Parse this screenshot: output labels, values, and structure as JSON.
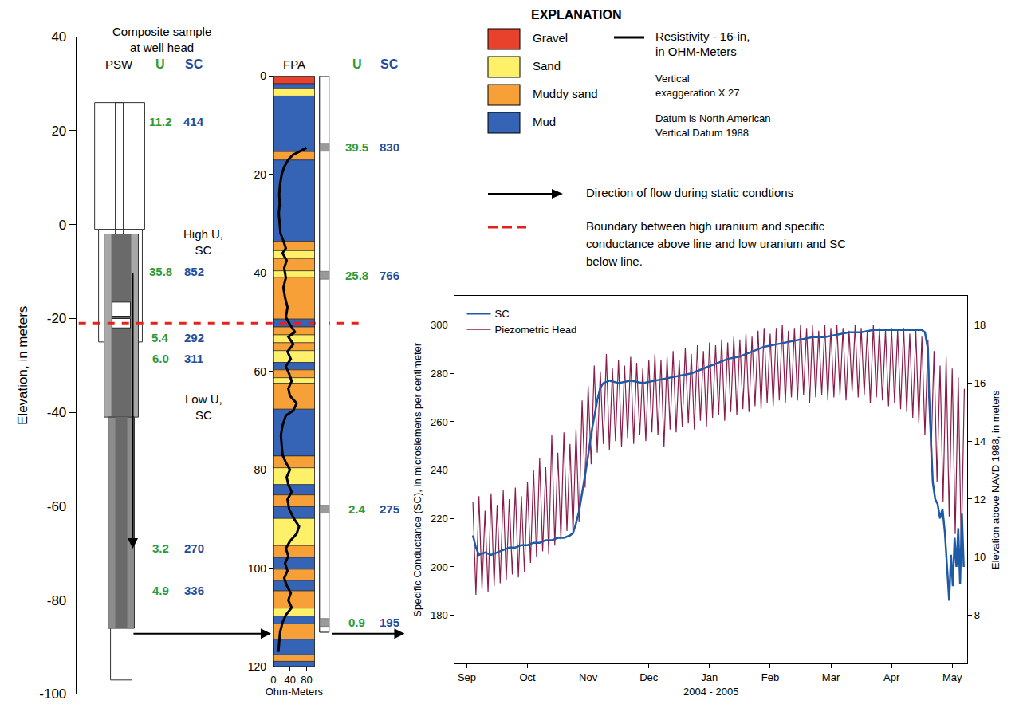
{
  "diagram": {
    "elevation_axis": {
      "title": "Elevation, in meters",
      "ylim": [
        -100,
        40
      ],
      "yticks": [
        -100,
        -80,
        -60,
        -40,
        -20,
        0,
        20,
        40
      ]
    },
    "boundary_elevation": -21,
    "psw": {
      "label": "PSW",
      "note": [
        "Composite sample",
        "at well head"
      ],
      "columns": [
        "U",
        "SC"
      ],
      "casing": [
        [
          26,
          -1
        ],
        [
          -1,
          -25
        ],
        [
          -2,
          -41
        ],
        [
          -41,
          -86
        ],
        [
          -86,
          -97
        ]
      ],
      "pump": [
        [
          -16.5,
          -19.5
        ],
        [
          -20,
          -22
        ]
      ],
      "samples": [
        {
          "elevation": 22,
          "U": "11.2",
          "SC": "414"
        },
        {
          "elevation": -10,
          "U": "35.8",
          "SC": "852"
        },
        {
          "elevation": -24,
          "U": "5.4",
          "SC": "292"
        },
        {
          "elevation": -28.5,
          "U": "6.0",
          "SC": "311"
        },
        {
          "elevation": -69,
          "U": "3.2",
          "SC": "270"
        },
        {
          "elevation": -78,
          "U": "4.9",
          "SC": "336"
        }
      ],
      "zones": [
        {
          "lines": [
            "High U,",
            "SC"
          ],
          "elevation": -3.7
        },
        {
          "lines": [
            "Low U,",
            "SC"
          ],
          "elevation": -38.8
        }
      ]
    },
    "fpa": {
      "label": "FPA",
      "columns": [
        "U",
        "SC"
      ],
      "depth_axis": {
        "ylim": [
          120,
          0
        ],
        "yticks": [
          0,
          20,
          40,
          60,
          80,
          100,
          120
        ]
      },
      "resistivity_axis": {
        "title": "Ohm-Meters",
        "xlim": [
          0,
          100
        ],
        "xticks": [
          0,
          40,
          80
        ]
      },
      "well_bottom_depth": 113,
      "samples": [
        {
          "depth": 14.5,
          "U": "39.5",
          "SC": "830"
        },
        {
          "depth": 40.5,
          "U": "25.8",
          "SC": "766"
        },
        {
          "depth": 88,
          "U": "2.4",
          "SC": "275"
        },
        {
          "depth": 111,
          "U": "0.9",
          "SC": "195"
        }
      ],
      "lithology": [
        {
          "top": 0,
          "bottom": 1.6,
          "unit": "Gravel"
        },
        {
          "top": 1.6,
          "bottom": 2.5,
          "unit": "Mud"
        },
        {
          "top": 2.5,
          "bottom": 4.1,
          "unit": "Sand"
        },
        {
          "top": 4.1,
          "bottom": 15.4,
          "unit": "Mud"
        },
        {
          "top": 15.4,
          "bottom": 17.1,
          "unit": "Muddy sand"
        },
        {
          "top": 17.1,
          "bottom": 33.6,
          "unit": "Mud"
        },
        {
          "top": 33.6,
          "bottom": 35.5,
          "unit": "Muddy sand"
        },
        {
          "top": 35.5,
          "bottom": 37.1,
          "unit": "Sand"
        },
        {
          "top": 37.1,
          "bottom": 39.6,
          "unit": "Muddy sand"
        },
        {
          "top": 39.6,
          "bottom": 40.9,
          "unit": "Sand"
        },
        {
          "top": 40.9,
          "bottom": 49.4,
          "unit": "Muddy sand"
        },
        {
          "top": 49.4,
          "bottom": 51,
          "unit": "Mud"
        },
        {
          "top": 51,
          "bottom": 52.6,
          "unit": "Muddy sand"
        },
        {
          "top": 52.6,
          "bottom": 54.2,
          "unit": "Sand"
        },
        {
          "top": 54.2,
          "bottom": 55.8,
          "unit": "Muddy sand"
        },
        {
          "top": 55.8,
          "bottom": 58.2,
          "unit": "Sand"
        },
        {
          "top": 58.2,
          "bottom": 59.7,
          "unit": "Mud"
        },
        {
          "top": 59.7,
          "bottom": 61.3,
          "unit": "Muddy sand"
        },
        {
          "top": 61.3,
          "bottom": 62.4,
          "unit": "Sand"
        },
        {
          "top": 62.4,
          "bottom": 67.7,
          "unit": "Muddy sand"
        },
        {
          "top": 67.7,
          "bottom": 77.2,
          "unit": "Mud"
        },
        {
          "top": 77.2,
          "bottom": 79.6,
          "unit": "Muddy sand"
        },
        {
          "top": 79.6,
          "bottom": 83,
          "unit": "Sand"
        },
        {
          "top": 83,
          "bottom": 85.1,
          "unit": "Mud"
        },
        {
          "top": 85.1,
          "bottom": 87.5,
          "unit": "Muddy sand"
        },
        {
          "top": 87.5,
          "bottom": 89.9,
          "unit": "Mud"
        },
        {
          "top": 89.9,
          "bottom": 95.4,
          "unit": "Sand"
        },
        {
          "top": 95.4,
          "bottom": 97.8,
          "unit": "Muddy sand"
        },
        {
          "top": 97.8,
          "bottom": 100.2,
          "unit": "Mud"
        },
        {
          "top": 100.2,
          "bottom": 102.5,
          "unit": "Muddy sand"
        },
        {
          "top": 102.5,
          "bottom": 104.6,
          "unit": "Mud"
        },
        {
          "top": 104.6,
          "bottom": 108.1,
          "unit": "Muddy sand"
        },
        {
          "top": 108.1,
          "bottom": 109.7,
          "unit": "Sand"
        },
        {
          "top": 109.7,
          "bottom": 111.3,
          "unit": "Mud"
        },
        {
          "top": 111.3,
          "bottom": 114.4,
          "unit": "Muddy sand"
        },
        {
          "top": 114.4,
          "bottom": 117.6,
          "unit": "Mud"
        },
        {
          "top": 117.6,
          "bottom": 118.9,
          "unit": "Muddy sand"
        },
        {
          "top": 118.9,
          "bottom": 120,
          "unit": "Mud"
        }
      ],
      "resistivity": {
        "depth": [
          14.6,
          15,
          15.5,
          16,
          17,
          18.5,
          20,
          22,
          24,
          26,
          28,
          30,
          32,
          33.5,
          35,
          36,
          37.5,
          39,
          41,
          43,
          45,
          47,
          49,
          50.5,
          52,
          53,
          54.5,
          56,
          57.5,
          59,
          60.5,
          62,
          63.5,
          65,
          66.5,
          68,
          69,
          71,
          73,
          75,
          77,
          78.5,
          80,
          81.5,
          83,
          84.5,
          86,
          88,
          90,
          91.5,
          93,
          94.5,
          96,
          97.5,
          99,
          100.5,
          102,
          103.5,
          105,
          106.5,
          108,
          109.5,
          111,
          113,
          115,
          117
        ],
        "ohm": [
          80,
          72,
          60,
          48,
          36,
          26,
          20,
          16,
          14,
          15,
          13,
          15,
          17,
          24,
          30,
          22,
          32,
          26,
          30,
          24,
          28,
          34,
          30,
          40,
          52,
          36,
          48,
          34,
          42,
          30,
          38,
          44,
          36,
          40,
          56,
          48,
          30,
          22,
          18,
          20,
          22,
          30,
          40,
          32,
          36,
          44,
          34,
          38,
          50,
          62,
          56,
          40,
          30,
          36,
          28,
          34,
          26,
          32,
          42,
          36,
          44,
          30,
          22,
          16,
          14,
          12
        ]
      }
    },
    "explanation": {
      "title": "EXPLANATION",
      "units": [
        {
          "name": "Gravel",
          "color": "#e8412c"
        },
        {
          "name": "Sand",
          "color": "#fff06a"
        },
        {
          "name": "Muddy sand",
          "color": "#f6a037"
        },
        {
          "name": "Mud",
          "color": "#3563b5"
        }
      ],
      "resistivity": [
        "Resistivity - 16-in,",
        "in OHM-Meters"
      ],
      "notes": [
        [
          "Vertical",
          "exaggeration X 27"
        ],
        [
          "Datum is North American",
          "Vertical Datum 1988"
        ]
      ],
      "flow": "Direction of flow during static condtions",
      "boundary": [
        "Boundary between high uranium and specific",
        "conductance above line and low uranium and SC",
        "below line."
      ]
    }
  },
  "chart_data": {
    "type": "line",
    "xlabel": "2004 - 2005",
    "ylabel": "Specific Conductance (SC), in microsiemens per centimeter",
    "y2label": "Elevation above NAVD 1988, in meters",
    "xlim": [
      -0.2,
      8.25
    ],
    "xticks": [
      {
        "value": 0,
        "label": "Sep"
      },
      {
        "value": 1,
        "label": "Oct"
      },
      {
        "value": 2,
        "label": "Nov"
      },
      {
        "value": 3,
        "label": "Dec"
      },
      {
        "value": 4,
        "label": "Jan"
      },
      {
        "value": 5,
        "label": "Feb"
      },
      {
        "value": 6,
        "label": "Mar"
      },
      {
        "value": 7,
        "label": "Apr"
      },
      {
        "value": 8,
        "label": "May"
      }
    ],
    "ylim": [
      160,
      312
    ],
    "yticks": [
      180,
      200,
      220,
      240,
      260,
      280,
      300
    ],
    "y2lim": [
      6.33,
      19
    ],
    "y2ticks": [
      8,
      10,
      12,
      14,
      16,
      18
    ],
    "grid": false,
    "legend": "top left",
    "series": [
      {
        "name": "SC",
        "color": "#1f5aa6",
        "x": [
          0.1,
          0.15,
          0.2,
          0.3,
          0.4,
          0.5,
          0.6,
          0.7,
          0.8,
          0.9,
          1,
          1.1,
          1.2,
          1.3,
          1.4,
          1.5,
          1.6,
          1.7,
          1.75,
          1.8,
          1.85,
          1.9,
          1.95,
          2,
          2.05,
          2.1,
          2.15,
          2.2,
          2.25,
          2.35,
          2.5,
          2.7,
          2.9,
          3.1,
          3.3,
          3.5,
          3.7,
          3.9,
          4.1,
          4.3,
          4.5,
          4.7,
          4.9,
          5.1,
          5.3,
          5.5,
          5.7,
          5.9,
          6.1,
          6.3,
          6.5,
          6.7,
          6.9,
          7.1,
          7.3,
          7.5,
          7.55,
          7.6,
          7.62,
          7.65,
          7.68,
          7.72,
          7.76,
          7.8,
          7.84,
          7.88,
          7.92,
          7.95,
          7.98,
          8.01,
          8.04,
          8.07,
          8.1,
          8.13,
          8.16,
          8.19
        ],
        "values": [
          213,
          208,
          205,
          206,
          205,
          206,
          207,
          208,
          208,
          209,
          209,
          210,
          210,
          211,
          211,
          212,
          212,
          213,
          214,
          218,
          223,
          230,
          238,
          246,
          255,
          262,
          269,
          274,
          276,
          277,
          276,
          277,
          276,
          277,
          278,
          279,
          280,
          282,
          284,
          286,
          287,
          289,
          291,
          292,
          293,
          294,
          295,
          295,
          296,
          297,
          297,
          298,
          298,
          298,
          298,
          298,
          297,
          290,
          270,
          250,
          235,
          228,
          226,
          220,
          224,
          214,
          198,
          186,
          205,
          192,
          212,
          200,
          216,
          193,
          222,
          200
        ]
      },
      {
        "name": "Piezometric Head",
        "color": "#8a1c4a",
        "axis": "y2",
        "x": [
          0.1,
          0.15,
          0.2,
          0.25,
          0.3,
          0.35,
          0.4,
          0.45,
          0.5,
          0.55,
          0.6,
          0.65,
          0.7,
          0.75,
          0.8,
          0.85,
          0.9,
          0.95,
          1,
          1.05,
          1.1,
          1.15,
          1.2,
          1.25,
          1.3,
          1.35,
          1.4,
          1.45,
          1.5,
          1.55,
          1.6,
          1.65,
          1.7,
          1.75,
          1.8,
          1.85,
          1.9,
          1.95,
          2,
          2.05,
          2.1,
          2.15,
          2.2,
          2.25,
          2.3,
          2.35,
          2.4,
          2.45,
          2.5,
          2.55,
          2.6,
          2.65,
          2.7,
          2.75,
          2.8,
          2.85,
          2.9,
          2.95,
          3,
          3.05,
          3.1,
          3.15,
          3.2,
          3.25,
          3.3,
          3.35,
          3.4,
          3.45,
          3.5,
          3.55,
          3.6,
          3.65,
          3.7,
          3.75,
          3.8,
          3.85,
          3.9,
          3.95,
          4,
          4.05,
          4.1,
          4.15,
          4.2,
          4.25,
          4.3,
          4.35,
          4.4,
          4.45,
          4.5,
          4.55,
          4.6,
          4.65,
          4.7,
          4.75,
          4.8,
          4.85,
          4.9,
          4.95,
          5,
          5.05,
          5.1,
          5.15,
          5.2,
          5.25,
          5.3,
          5.35,
          5.4,
          5.45,
          5.5,
          5.55,
          5.6,
          5.65,
          5.7,
          5.75,
          5.8,
          5.85,
          5.9,
          5.95,
          6,
          6.05,
          6.1,
          6.15,
          6.2,
          6.25,
          6.3,
          6.35,
          6.4,
          6.45,
          6.5,
          6.55,
          6.6,
          6.65,
          6.7,
          6.75,
          6.8,
          6.85,
          6.9,
          6.95,
          7,
          7.05,
          7.1,
          7.15,
          7.2,
          7.25,
          7.3,
          7.35,
          7.4,
          7.45,
          7.5,
          7.55,
          7.6,
          7.65,
          7.7,
          7.75,
          7.8,
          7.85,
          7.9,
          7.95,
          8,
          8.05,
          8.1,
          8.15,
          8.2
        ],
        "values": [
          11.9,
          8.7,
          12.1,
          8.9,
          11.6,
          8.8,
          12.2,
          9.0,
          11.8,
          9.1,
          12.3,
          9.2,
          12.0,
          9.4,
          12.4,
          9.3,
          12.1,
          9.5,
          12.6,
          9.8,
          13.0,
          10.0,
          13.4,
          10.2,
          13.1,
          10.1,
          14.2,
          10.4,
          13.6,
          10.6,
          14.3,
          10.9,
          13.9,
          10.8,
          14.4,
          11.2,
          15.4,
          12.4,
          15.9,
          13.2,
          16.6,
          13.6,
          16.4,
          13.9,
          17.0,
          13.7,
          16.5,
          14.0,
          16.8,
          13.8,
          16.6,
          14.1,
          16.9,
          13.9,
          16.7,
          14.2,
          16.5,
          14.0,
          16.8,
          14.3,
          17.0,
          14.2,
          16.8,
          13.8,
          16.9,
          14.4,
          17.1,
          14.3,
          16.8,
          14.5,
          17.2,
          14.6,
          17.0,
          14.4,
          17.3,
          14.7,
          17.1,
          14.5,
          17.4,
          14.8,
          17.3,
          14.9,
          17.5,
          14.7,
          17.4,
          15.0,
          17.6,
          14.9,
          17.5,
          15.1,
          17.7,
          15.0,
          17.6,
          15.2,
          17.8,
          15.1,
          17.9,
          15.3,
          17.7,
          15.2,
          17.9,
          15.4,
          18.0,
          15.3,
          17.8,
          15.5,
          17.9,
          15.4,
          18.0,
          15.6,
          17.9,
          15.3,
          18.0,
          15.5,
          17.8,
          15.6,
          18.0,
          15.4,
          17.9,
          15.5,
          18.0,
          15.6,
          17.9,
          15.4,
          17.8,
          15.7,
          18.0,
          15.5,
          17.9,
          15.6,
          17.8,
          15.3,
          18.0,
          15.5,
          17.9,
          15.4,
          17.8,
          15.2,
          17.9,
          15.3,
          17.8,
          15.1,
          17.9,
          15.0,
          17.7,
          14.8,
          17.8,
          14.6,
          17.6,
          14.2,
          17.5,
          13.4,
          17.1,
          12.6,
          16.6,
          11.9,
          16.9,
          11.4,
          16.5,
          10.8,
          16.2,
          10.2,
          15.8
        ]
      }
    ]
  }
}
